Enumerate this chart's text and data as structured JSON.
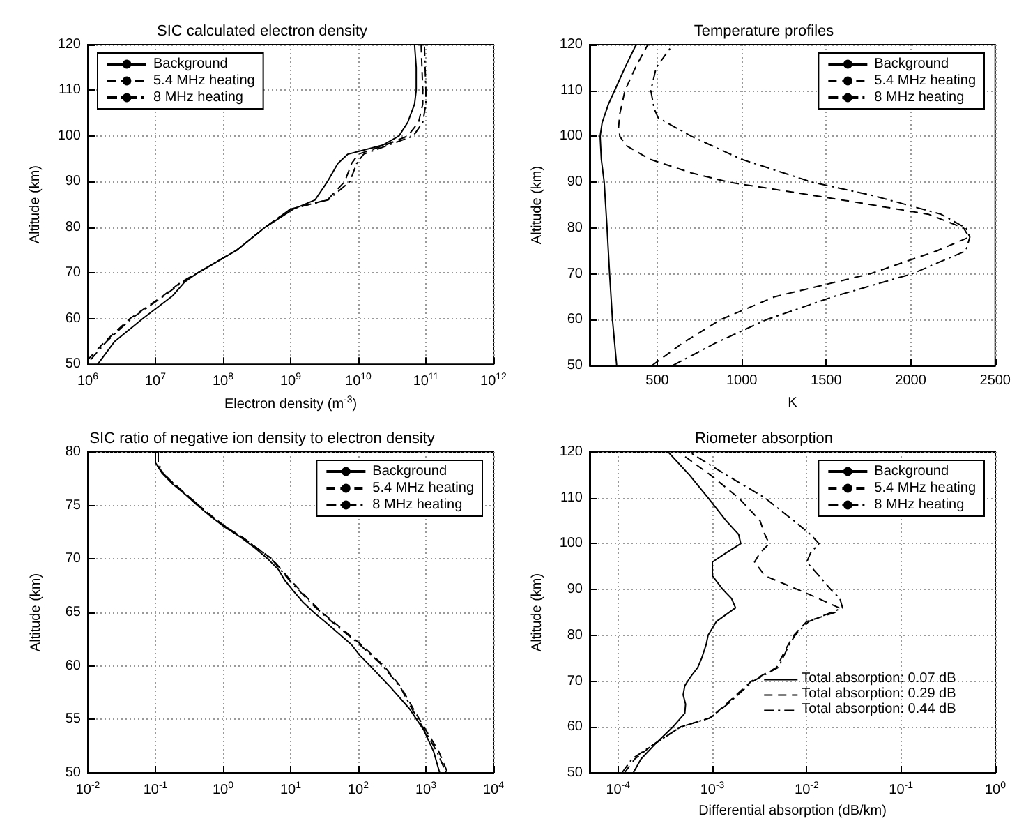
{
  "chart_data": [
    {
      "type": "line",
      "title": "SIC calculated electron density",
      "xlabel": "Electron density (m$^{-3}$)",
      "ylabel": "Altitude (km)",
      "log": "x",
      "grid": true,
      "legend": "top left",
      "xlim": [
        1000000,
        1000000000000
      ],
      "xticks": [
        {
          "value": 1000000,
          "label": "10$^{6}$"
        },
        {
          "value": 10000000,
          "label": "10$^{7}$"
        },
        {
          "value": 100000000,
          "label": "10$^{8}$"
        },
        {
          "value": 1000000000,
          "label": "10$^{9}$"
        },
        {
          "value": 10000000000,
          "label": "10$^{10}$"
        },
        {
          "value": 100000000000,
          "label": "10$^{11}$"
        },
        {
          "value": 1000000000000,
          "label": "10$^{12}$"
        }
      ],
      "ylim": [
        50,
        120
      ],
      "yticks": [
        50,
        60,
        70,
        80,
        90,
        100,
        110,
        120
      ],
      "series": [
        {
          "name": "Background",
          "color": "#000000",
          "line_style": "solid",
          "x": [
            1400000,
            2500000,
            6500000,
            18000000,
            27000000,
            42000000,
            160000000,
            420000000,
            1100000000,
            2300000000,
            3500000000,
            5000000000,
            7000000000,
            23000000000,
            40000000000,
            54000000000,
            68000000000,
            72000000000,
            72000000000,
            68000000000
          ],
          "values": [
            50,
            55,
            60,
            65,
            68,
            70,
            75,
            80,
            84,
            86,
            90,
            94,
            96,
            98,
            100,
            103,
            107,
            110,
            115,
            120
          ]
        },
        {
          "name": "5.4 MHz heating",
          "color": "#000000",
          "line_style": "dashed",
          "x": [
            1000000,
            1800000,
            4200000,
            13000000,
            24000000,
            42000000,
            160000000,
            420000000,
            1000000000,
            3500000000,
            6300000000,
            8000000000,
            10000000000,
            25000000000,
            54000000000,
            78000000000,
            90000000000,
            90000000000,
            85000000000
          ],
          "values": [
            51,
            55,
            60,
            65,
            68,
            70,
            75,
            80,
            84,
            86,
            90,
            94,
            96,
            98,
            100,
            103,
            107,
            110,
            120
          ]
        },
        {
          "name": "8 MHz heating",
          "color": "#000000",
          "line_style": "dotted",
          "x": [
            1100000,
            1900000,
            4400000,
            13500000,
            25000000,
            42000000,
            160000000,
            420000000,
            1000000000,
            3600000000,
            7500000000,
            9500000000,
            12000000000,
            28000000000,
            65000000000,
            90000000000,
            100000000000,
            100000000000,
            95000000000
          ],
          "values": [
            51,
            55,
            60,
            65,
            68,
            70,
            75,
            80,
            84,
            86,
            90,
            94,
            96,
            98,
            100,
            103,
            107,
            110,
            120
          ]
        }
      ]
    },
    {
      "type": "line",
      "title": "Temperature profiles",
      "xlabel": "K",
      "ylabel": "Altitude (km)",
      "grid": true,
      "legend": "top right",
      "xlim": [
        100,
        2500
      ],
      "xticks": [
        500,
        1000,
        1500,
        2000,
        2500
      ],
      "ylim": [
        50,
        120
      ],
      "yticks": [
        50,
        60,
        70,
        80,
        90,
        100,
        110,
        120
      ],
      "series": [
        {
          "name": "Background",
          "color": "#000000",
          "line_style": "solid",
          "x": [
            260,
            235,
            218,
            203,
            186,
            169,
            162,
            174,
            211,
            248,
            309,
            375
          ],
          "values": [
            50,
            60,
            70,
            80,
            90,
            95,
            100,
            103,
            107,
            110,
            115,
            120
          ]
        },
        {
          "name": "5.4 MHz heating",
          "color": "#000000",
          "line_style": "dashed",
          "x": [
            469,
            654,
            875,
            1195,
            1760,
            2154,
            2346,
            2313,
            2105,
            1613,
            1269,
            924,
            703,
            457,
            315,
            279,
            271,
            279,
            309,
            371,
            444
          ],
          "values": [
            50,
            55,
            60,
            65,
            70,
            75,
            78,
            80,
            83,
            86,
            88,
            90,
            92,
            95,
            98,
            100,
            102,
            105,
            110,
            115,
            120
          ]
        },
        {
          "name": "8 MHz heating",
          "color": "#000000",
          "line_style": "dotted",
          "x": [
            592,
            850,
            1146,
            1540,
            2008,
            2326,
            2350,
            2326,
            2179,
            1785,
            1416,
            998,
            703,
            506,
            482,
            462,
            494,
            592
          ],
          "values": [
            50,
            55,
            60,
            65,
            70,
            75,
            78,
            80,
            83,
            87,
            90,
            95,
            100,
            104,
            106,
            110,
            115,
            120
          ]
        }
      ]
    },
    {
      "type": "line",
      "title": "SIC ratio of negative ion density to electron density",
      "ylabel": "Altitude (km)",
      "log": "x",
      "grid": true,
      "legend": "top right",
      "xlim": [
        0.01,
        10000
      ],
      "xticks": [
        {
          "value": 0.01,
          "label": "10$^{-2}$"
        },
        {
          "value": 0.1,
          "label": "10$^{-1}$"
        },
        {
          "value": 1,
          "label": "10$^{0}$"
        },
        {
          "value": 10,
          "label": "10$^{1}$"
        },
        {
          "value": 100,
          "label": "10$^{2}$"
        },
        {
          "value": 1000,
          "label": "10$^{3}$"
        },
        {
          "value": 10000,
          "label": "10$^{4}$"
        }
      ],
      "ylim": [
        50,
        80
      ],
      "yticks": [
        50,
        55,
        60,
        65,
        70,
        75,
        80
      ],
      "series": [
        {
          "name": "Background",
          "color": "#000000",
          "line_style": "solid",
          "x": [
            0.1,
            0.1,
            0.126,
            0.18,
            0.28,
            0.42,
            0.65,
            1.05,
            1.85,
            3,
            4.6,
            6.6,
            8.2,
            11,
            15,
            22,
            34,
            52,
            79,
            105,
            150,
            300,
            570,
            930,
            1300,
            1600
          ],
          "values": [
            80,
            79,
            78,
            77,
            76,
            75,
            74,
            73,
            72,
            71,
            70,
            69,
            68,
            67,
            66,
            65,
            64,
            63,
            62,
            61,
            60,
            58,
            56,
            54,
            52,
            50
          ]
        },
        {
          "name": "5.4 MHz heating",
          "color": "#000000",
          "line_style": "dashed",
          "x": [
            0.1,
            0.1,
            0.13,
            0.19,
            0.29,
            0.44,
            0.68,
            1.1,
            1.95,
            3.2,
            5.3,
            10,
            20,
            29,
            45,
            110,
            240,
            430,
            650,
            1000,
            1550,
            2100
          ],
          "values": [
            80,
            79,
            78,
            77,
            76,
            75,
            74,
            73,
            72,
            71,
            70,
            68,
            66,
            65,
            64,
            62,
            60,
            58,
            56,
            54,
            52,
            50
          ]
        },
        {
          "name": "8 MHz heating",
          "color": "#000000",
          "line_style": "dotted",
          "x": [
            0.11,
            0.11,
            0.13,
            0.19,
            0.29,
            0.44,
            0.68,
            1.1,
            1.95,
            3.2,
            5.2,
            9.6,
            19,
            28,
            43,
            105,
            230,
            420,
            620,
            950,
            1450,
            2000
          ],
          "values": [
            80,
            79,
            78,
            77,
            76,
            75,
            74,
            73,
            72,
            71,
            70,
            68,
            66,
            65,
            64,
            62,
            60,
            58,
            56,
            54,
            52,
            50
          ]
        }
      ]
    },
    {
      "type": "line",
      "title": "Riometer absorption",
      "xlabel": "Differential absorption (dB/km)",
      "ylabel": "Altitude (km)",
      "log": "x",
      "grid": true,
      "legend": "top right",
      "xlim": [
        5e-05,
        1
      ],
      "xticks": [
        {
          "value": 0.0001,
          "label": "10$^{-4}$"
        },
        {
          "value": 0.001,
          "label": "10$^{-3}$"
        },
        {
          "value": 0.01,
          "label": "10$^{-2}$"
        },
        {
          "value": 0.1,
          "label": "10$^{-1}$"
        },
        {
          "value": 1,
          "label": "10$^{0}$"
        }
      ],
      "ylim": [
        50,
        120
      ],
      "yticks": [
        50,
        60,
        70,
        80,
        90,
        100,
        110,
        120
      ],
      "annotations": [
        "Total absorption: 0.07 dB",
        "Total absorption: 0.29 dB",
        "Total absorption: 0.44 dB"
      ],
      "series": [
        {
          "name": "Background",
          "color": "#000000",
          "line_style": "solid",
          "x": [
            0.000145,
            0.000175,
            0.00024,
            0.00038,
            0.00051,
            0.00052,
            0.00049,
            0.00051,
            0.00059,
            0.0007,
            0.00077,
            0.00086,
            0.0009,
            0.0011,
            0.00176,
            0.0016,
            0.00129,
            0.001,
            0.001,
            0.0014,
            0.002,
            0.0019,
            0.0014,
            0.0009,
            0.00057,
            0.00034
          ],
          "values": [
            50,
            53,
            56,
            60,
            63,
            65,
            67,
            69,
            71,
            73,
            75,
            78,
            80,
            83,
            86,
            88,
            90,
            93,
            96,
            98,
            100,
            102,
            105,
            110,
            115,
            120
          ]
        },
        {
          "name": "5.4 MHz heating",
          "color": "#000000",
          "line_style": "dashed",
          "x": [
            0.000117,
            0.00015,
            0.00023,
            0.00046,
            0.00095,
            0.0014,
            0.0026,
            0.0048,
            0.006,
            0.0073,
            0.01,
            0.02,
            0.022,
            0.0135,
            0.008,
            0.0036,
            0.0028,
            0.0032,
            0.004,
            0.0036,
            0.0032,
            0.0019,
            0.00095,
            0.00044
          ],
          "values": [
            50,
            53,
            56,
            60,
            62,
            65,
            70,
            73,
            77,
            80,
            83,
            85,
            86,
            88,
            90,
            93,
            96,
            98,
            100,
            102,
            105,
            110,
            115,
            120
          ]
        },
        {
          "name": "8 MHz heating",
          "color": "#000000",
          "line_style": "dotted",
          "x": [
            0.00011,
            0.00014,
            0.00023,
            0.00046,
            0.00095,
            0.00145,
            0.0027,
            0.005,
            0.0062,
            0.0075,
            0.0105,
            0.024,
            0.0225,
            0.018,
            0.0135,
            0.01,
            0.011,
            0.0135,
            0.011,
            0.0073,
            0.0036,
            0.0014,
            0.00057
          ],
          "values": [
            50,
            53,
            56,
            60,
            62,
            65,
            70,
            73,
            77,
            80,
            83,
            86,
            88,
            90,
            93,
            96,
            98,
            100,
            102,
            105,
            110,
            115,
            120
          ]
        }
      ]
    }
  ]
}
